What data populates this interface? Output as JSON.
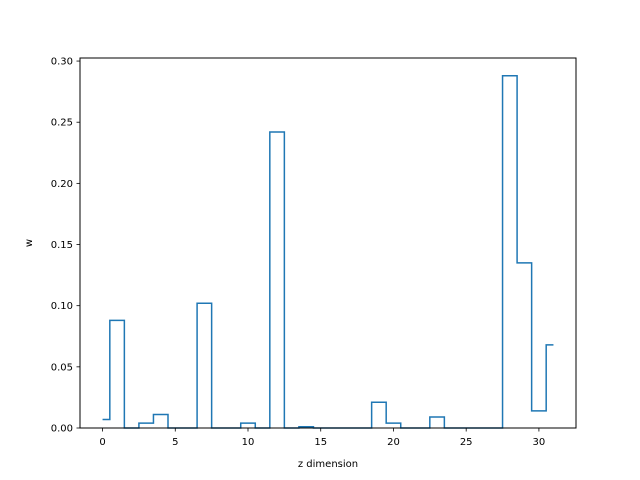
{
  "chart_data": {
    "type": "line",
    "drawstyle": "steps-mid",
    "xlabel": "z dimension",
    "ylabel": "w",
    "xlim": [
      -1.55,
      32.55
    ],
    "ylim": [
      0.0,
      0.3025
    ],
    "xticks": [
      0,
      5,
      10,
      15,
      20,
      25,
      30
    ],
    "yticks": [
      0.0,
      0.05,
      0.1,
      0.15,
      0.2,
      0.25,
      0.3
    ],
    "ytick_labels": [
      "0.00",
      "0.05",
      "0.10",
      "0.15",
      "0.20",
      "0.25",
      "0.30"
    ],
    "grid": false,
    "series": [
      {
        "color": "#1f77b4",
        "x": [
          0,
          1,
          2,
          3,
          4,
          5,
          6,
          7,
          8,
          9,
          10,
          11,
          12,
          13,
          14,
          15,
          16,
          17,
          18,
          19,
          20,
          21,
          22,
          23,
          24,
          25,
          26,
          27,
          28,
          29,
          30,
          31
        ],
        "values": [
          0.007,
          0.088,
          0.0,
          0.004,
          0.011,
          0.0,
          0.0,
          0.102,
          0.0,
          0.0,
          0.004,
          0.0,
          0.242,
          0.0,
          0.001,
          0.0,
          0.0,
          0.0,
          0.0,
          0.021,
          0.004,
          0.0,
          0.0,
          0.009,
          0.0,
          0.0,
          0.0,
          0.0,
          0.288,
          0.135,
          0.014,
          0.068
        ]
      }
    ]
  }
}
